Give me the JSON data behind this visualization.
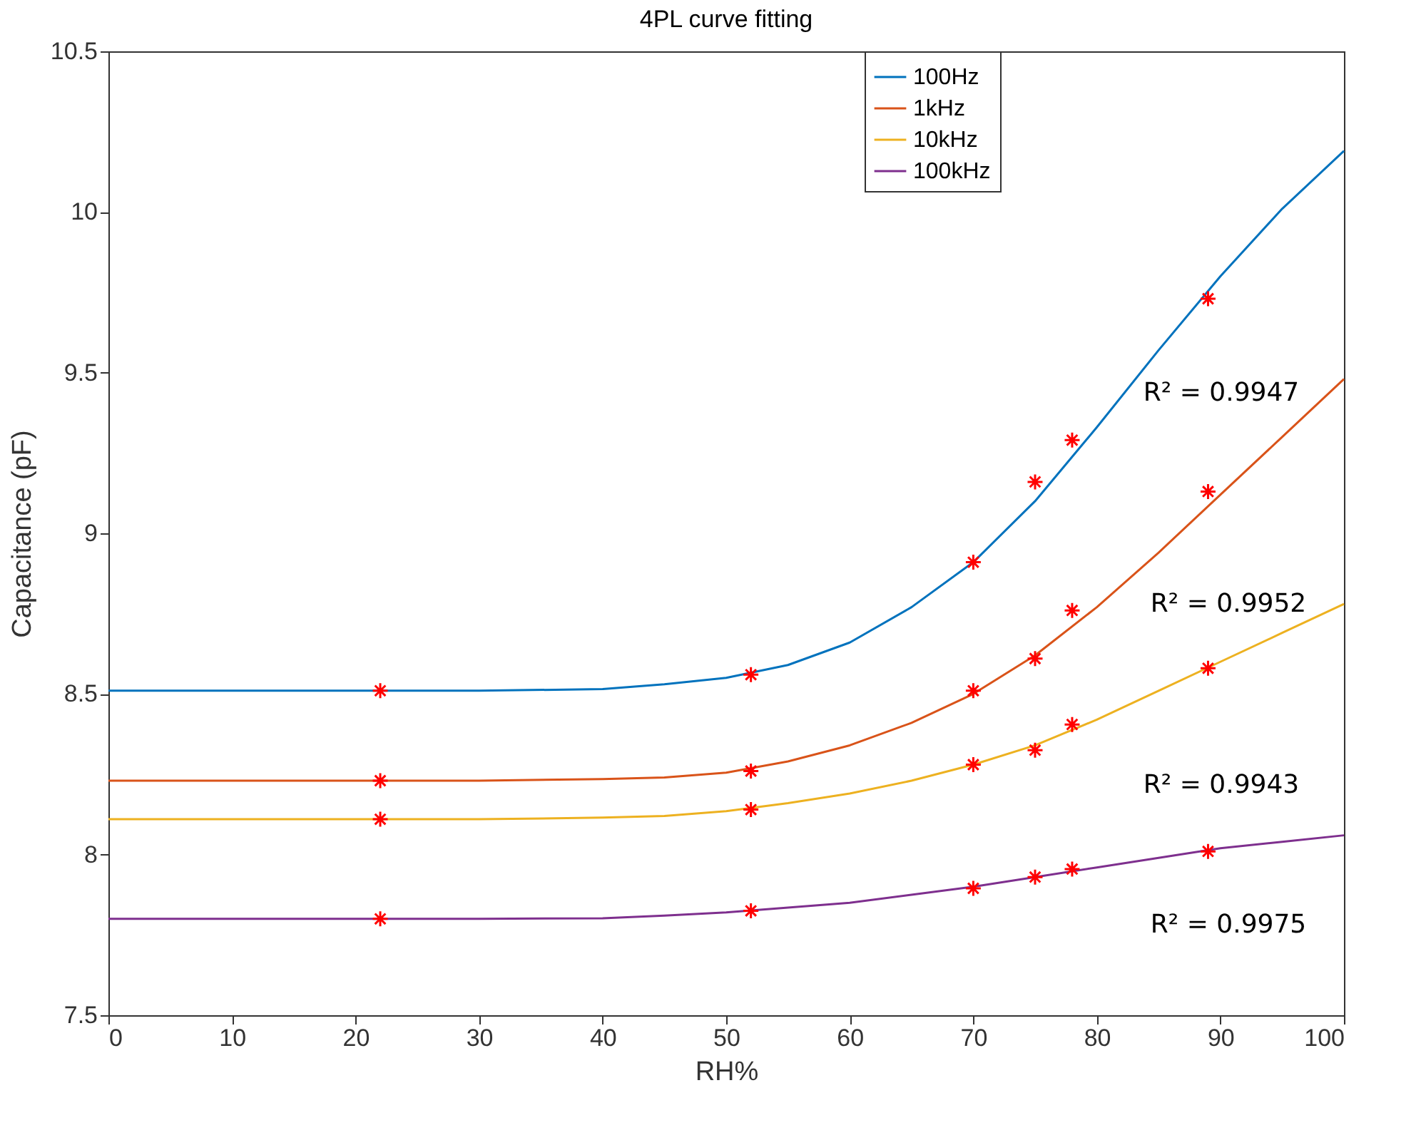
{
  "chart_data": {
    "type": "line",
    "title": "4PL curve fitting",
    "xlabel": "RH%",
    "ylabel": "Capacitance (pF)",
    "xlim": [
      0,
      100
    ],
    "xticks": [
      0,
      10,
      20,
      30,
      40,
      50,
      60,
      70,
      80,
      90,
      100
    ],
    "ylim": [
      7.5,
      10.5
    ],
    "yticks": [
      7.5,
      8,
      8.5,
      9,
      9.5,
      10,
      10.5
    ],
    "grid": false,
    "legend": "top right",
    "marker": "none",
    "line_style": "solid",
    "series": [
      {
        "name": "100Hz",
        "color": "#0072bd",
        "x": [
          0,
          10,
          20,
          30,
          40,
          45,
          50,
          55,
          60,
          65,
          70,
          75,
          80,
          85,
          90,
          95,
          100
        ],
        "values": [
          8.51,
          8.51,
          8.51,
          8.51,
          8.515,
          8.53,
          8.55,
          8.59,
          8.66,
          8.77,
          8.91,
          9.1,
          9.33,
          9.57,
          9.8,
          10.01,
          10.19
        ]
      },
      {
        "name": "1kHz",
        "color": "#d95319",
        "x": [
          0,
          10,
          20,
          30,
          40,
          45,
          50,
          55,
          60,
          65,
          70,
          75,
          80,
          85,
          90,
          95,
          100
        ],
        "values": [
          8.23,
          8.23,
          8.23,
          8.23,
          8.235,
          8.24,
          8.255,
          8.29,
          8.34,
          8.41,
          8.5,
          8.62,
          8.77,
          8.94,
          9.12,
          9.3,
          9.48
        ]
      },
      {
        "name": "10kHz",
        "color": "#edb120",
        "x": [
          0,
          10,
          20,
          30,
          40,
          45,
          50,
          55,
          60,
          65,
          70,
          75,
          80,
          85,
          90,
          95,
          100
        ],
        "values": [
          8.11,
          8.11,
          8.11,
          8.11,
          8.115,
          8.12,
          8.135,
          8.16,
          8.19,
          8.23,
          8.28,
          8.34,
          8.42,
          8.51,
          8.6,
          8.69,
          8.78
        ]
      },
      {
        "name": "100kHz",
        "color": "#7e2f8e",
        "x": [
          0,
          10,
          20,
          30,
          40,
          45,
          50,
          55,
          60,
          65,
          70,
          75,
          80,
          85,
          90,
          95,
          100
        ],
        "values": [
          7.8,
          7.8,
          7.8,
          7.8,
          7.802,
          7.81,
          7.82,
          7.835,
          7.85,
          7.875,
          7.9,
          7.93,
          7.96,
          7.99,
          8.02,
          8.04,
          8.06
        ]
      },
      {
        "color": "#ff0000",
        "type": "scatter",
        "marker": "cross",
        "x": [
          22,
          52,
          70,
          75,
          78,
          89
        ],
        "values": [
          8.51,
          8.56,
          8.91,
          9.16,
          9.29,
          9.73
        ]
      },
      {
        "color": "#ff0000",
        "type": "scatter",
        "marker": "cross",
        "x": [
          22,
          52,
          70,
          75,
          78,
          89
        ],
        "values": [
          8.23,
          8.26,
          8.51,
          8.61,
          8.76,
          9.13
        ]
      },
      {
        "color": "#ff0000",
        "type": "scatter",
        "marker": "cross",
        "x": [
          22,
          52,
          70,
          75,
          78,
          89
        ],
        "values": [
          8.11,
          8.14,
          8.28,
          8.325,
          8.405,
          8.58
        ]
      },
      {
        "color": "#ff0000",
        "type": "scatter",
        "marker": "cross",
        "x": [
          22,
          52,
          70,
          75,
          78,
          89
        ],
        "values": [
          7.8,
          7.825,
          7.895,
          7.93,
          7.955,
          8.01
        ]
      }
    ],
    "annotations": [
      "R² = 0.9947",
      "R² = 0.9952",
      "R² = 0.9943",
      "R² = 0.9975"
    ]
  }
}
